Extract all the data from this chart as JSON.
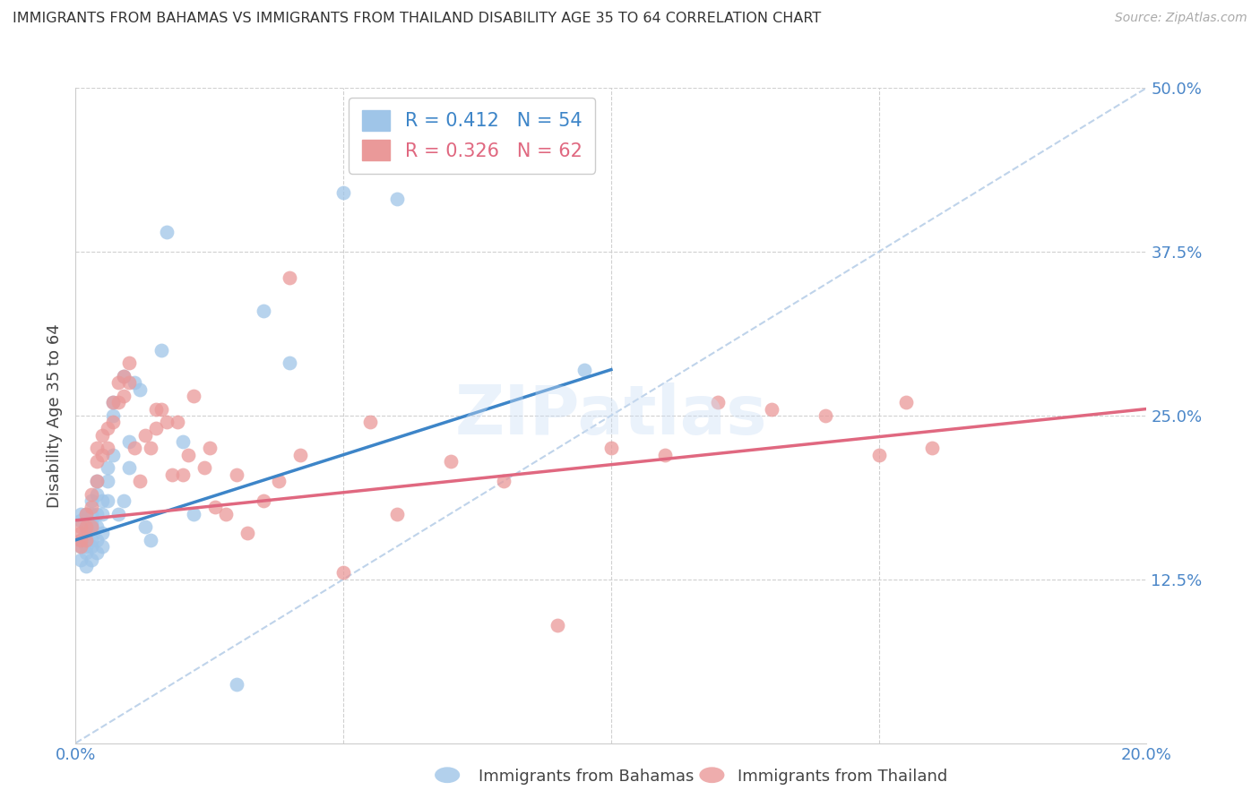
{
  "title": "IMMIGRANTS FROM BAHAMAS VS IMMIGRANTS FROM THAILAND DISABILITY AGE 35 TO 64 CORRELATION CHART",
  "source": "Source: ZipAtlas.com",
  "xlabel_label": "Immigrants from Bahamas",
  "ylabel_label": "Disability Age 35 to 64",
  "legend_label2": "Immigrants from Thailand",
  "xlim": [
    0.0,
    0.2
  ],
  "ylim": [
    0.0,
    0.5
  ],
  "xticks": [
    0.0,
    0.05,
    0.1,
    0.15,
    0.2
  ],
  "yticks": [
    0.125,
    0.25,
    0.375,
    0.5
  ],
  "xticklabels": [
    "0.0%",
    "",
    "",
    "",
    "20.0%"
  ],
  "yticklabels": [
    "12.5%",
    "25.0%",
    "37.5%",
    "50.0%"
  ],
  "R_bahamas": 0.412,
  "N_bahamas": 54,
  "R_thailand": 0.326,
  "N_thailand": 62,
  "color_bahamas": "#9fc5e8",
  "color_thailand": "#ea9999",
  "trendline_color_bahamas": "#3d85c8",
  "trendline_color_thailand": "#e06880",
  "diagonal_color": "#b8cfe8",
  "grid_color": "#d0d0d0",
  "background_color": "#ffffff",
  "bahamas_x": [
    0.001,
    0.001,
    0.001,
    0.001,
    0.001,
    0.002,
    0.002,
    0.002,
    0.002,
    0.002,
    0.002,
    0.002,
    0.003,
    0.003,
    0.003,
    0.003,
    0.003,
    0.003,
    0.003,
    0.004,
    0.004,
    0.004,
    0.004,
    0.004,
    0.004,
    0.005,
    0.005,
    0.005,
    0.005,
    0.006,
    0.006,
    0.006,
    0.007,
    0.007,
    0.007,
    0.008,
    0.009,
    0.009,
    0.01,
    0.01,
    0.011,
    0.012,
    0.013,
    0.014,
    0.016,
    0.017,
    0.02,
    0.022,
    0.03,
    0.035,
    0.04,
    0.05,
    0.06,
    0.095
  ],
  "bahamas_y": [
    0.155,
    0.17,
    0.175,
    0.15,
    0.14,
    0.155,
    0.16,
    0.165,
    0.145,
    0.135,
    0.175,
    0.15,
    0.175,
    0.168,
    0.155,
    0.185,
    0.165,
    0.15,
    0.14,
    0.2,
    0.19,
    0.175,
    0.165,
    0.155,
    0.145,
    0.185,
    0.175,
    0.16,
    0.15,
    0.21,
    0.2,
    0.185,
    0.26,
    0.25,
    0.22,
    0.175,
    0.28,
    0.185,
    0.23,
    0.21,
    0.275,
    0.27,
    0.165,
    0.155,
    0.3,
    0.39,
    0.23,
    0.175,
    0.045,
    0.33,
    0.29,
    0.42,
    0.415,
    0.285
  ],
  "thailand_x": [
    0.001,
    0.001,
    0.001,
    0.001,
    0.002,
    0.002,
    0.002,
    0.003,
    0.003,
    0.003,
    0.004,
    0.004,
    0.004,
    0.005,
    0.005,
    0.006,
    0.006,
    0.007,
    0.007,
    0.008,
    0.008,
    0.009,
    0.009,
    0.01,
    0.01,
    0.011,
    0.012,
    0.013,
    0.014,
    0.015,
    0.015,
    0.016,
    0.017,
    0.018,
    0.019,
    0.02,
    0.021,
    0.022,
    0.024,
    0.025,
    0.026,
    0.028,
    0.03,
    0.032,
    0.035,
    0.038,
    0.04,
    0.042,
    0.05,
    0.055,
    0.06,
    0.07,
    0.08,
    0.09,
    0.1,
    0.11,
    0.12,
    0.13,
    0.14,
    0.15,
    0.155,
    0.16
  ],
  "thailand_y": [
    0.16,
    0.15,
    0.165,
    0.155,
    0.175,
    0.165,
    0.155,
    0.19,
    0.18,
    0.165,
    0.225,
    0.215,
    0.2,
    0.235,
    0.22,
    0.24,
    0.225,
    0.26,
    0.245,
    0.275,
    0.26,
    0.28,
    0.265,
    0.29,
    0.275,
    0.225,
    0.2,
    0.235,
    0.225,
    0.255,
    0.24,
    0.255,
    0.245,
    0.205,
    0.245,
    0.205,
    0.22,
    0.265,
    0.21,
    0.225,
    0.18,
    0.175,
    0.205,
    0.16,
    0.185,
    0.2,
    0.355,
    0.22,
    0.13,
    0.245,
    0.175,
    0.215,
    0.2,
    0.09,
    0.225,
    0.22,
    0.26,
    0.255,
    0.25,
    0.22,
    0.26,
    0.225
  ],
  "trendline_bahamas_x0": 0.0,
  "trendline_bahamas_y0": 0.155,
  "trendline_bahamas_x1": 0.1,
  "trendline_bahamas_y1": 0.285,
  "trendline_thailand_x0": 0.0,
  "trendline_thailand_y0": 0.17,
  "trendline_thailand_x1": 0.2,
  "trendline_thailand_y1": 0.255
}
